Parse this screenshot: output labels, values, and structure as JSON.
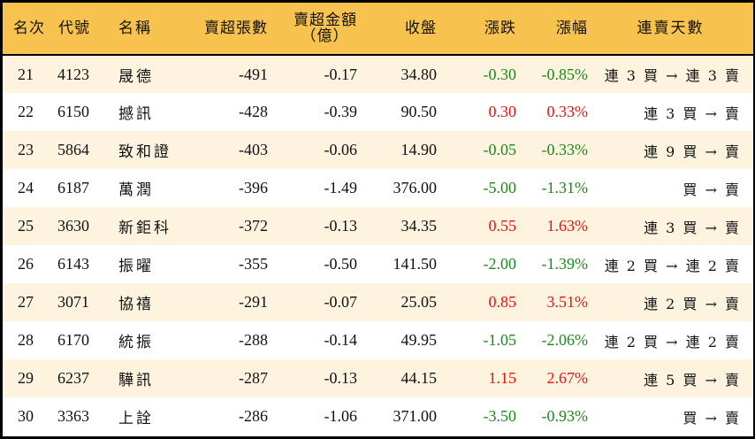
{
  "colors": {
    "header_bg": "#F8C24E",
    "row_alt_bg": "#FDF3DF",
    "row_bg": "#FFFFFF",
    "border": "#000000",
    "up": "#EE1111",
    "down": "#1A8A1A"
  },
  "header": {
    "rank": "名次",
    "code": "代號",
    "name": "名稱",
    "net_sell_volume": "賣超張數",
    "net_sell_amount_line1": "賣超金額",
    "net_sell_amount_line2": "（億）",
    "close": "收盤",
    "change": "漲跌",
    "change_pct": "漲幅",
    "streak": "連賣天數"
  },
  "rows": [
    {
      "rank": "21",
      "code": "4123",
      "name": "晟德",
      "vol": "-491",
      "amt": "-0.17",
      "close": "34.80",
      "chg": "-0.30",
      "pct": "-0.85%",
      "dir": "down",
      "streak": "連 3 買 → 連 3 賣"
    },
    {
      "rank": "22",
      "code": "6150",
      "name": "撼訊",
      "vol": "-428",
      "amt": "-0.39",
      "close": "90.50",
      "chg": "0.30",
      "pct": "0.33%",
      "dir": "up",
      "streak": "連 3 買 → 賣"
    },
    {
      "rank": "23",
      "code": "5864",
      "name": "致和證",
      "vol": "-403",
      "amt": "-0.06",
      "close": "14.90",
      "chg": "-0.05",
      "pct": "-0.33%",
      "dir": "down",
      "streak": "連 9 買 → 賣"
    },
    {
      "rank": "24",
      "code": "6187",
      "name": "萬潤",
      "vol": "-396",
      "amt": "-1.49",
      "close": "376.00",
      "chg": "-5.00",
      "pct": "-1.31%",
      "dir": "down",
      "streak": "買 → 賣"
    },
    {
      "rank": "25",
      "code": "3630",
      "name": "新鉅科",
      "vol": "-372",
      "amt": "-0.13",
      "close": "34.35",
      "chg": "0.55",
      "pct": "1.63%",
      "dir": "up",
      "streak": "連 3 買 → 賣"
    },
    {
      "rank": "26",
      "code": "6143",
      "name": "振曜",
      "vol": "-355",
      "amt": "-0.50",
      "close": "141.50",
      "chg": "-2.00",
      "pct": "-1.39%",
      "dir": "down",
      "streak": "連 2 買 → 連 2 賣"
    },
    {
      "rank": "27",
      "code": "3071",
      "name": "協禧",
      "vol": "-291",
      "amt": "-0.07",
      "close": "25.05",
      "chg": "0.85",
      "pct": "3.51%",
      "dir": "up",
      "streak": "連 2 買 → 賣"
    },
    {
      "rank": "28",
      "code": "6170",
      "name": "統振",
      "vol": "-288",
      "amt": "-0.14",
      "close": "49.95",
      "chg": "-1.05",
      "pct": "-2.06%",
      "dir": "down",
      "streak": "連 2 買 → 連 2 賣"
    },
    {
      "rank": "29",
      "code": "6237",
      "name": "驊訊",
      "vol": "-287",
      "amt": "-0.13",
      "close": "44.15",
      "chg": "1.15",
      "pct": "2.67%",
      "dir": "up",
      "streak": "連 5 買 → 賣"
    },
    {
      "rank": "30",
      "code": "3363",
      "name": "上詮",
      "vol": "-286",
      "amt": "-1.06",
      "close": "371.00",
      "chg": "-3.50",
      "pct": "-0.93%",
      "dir": "down",
      "streak": "買 → 賣"
    }
  ]
}
